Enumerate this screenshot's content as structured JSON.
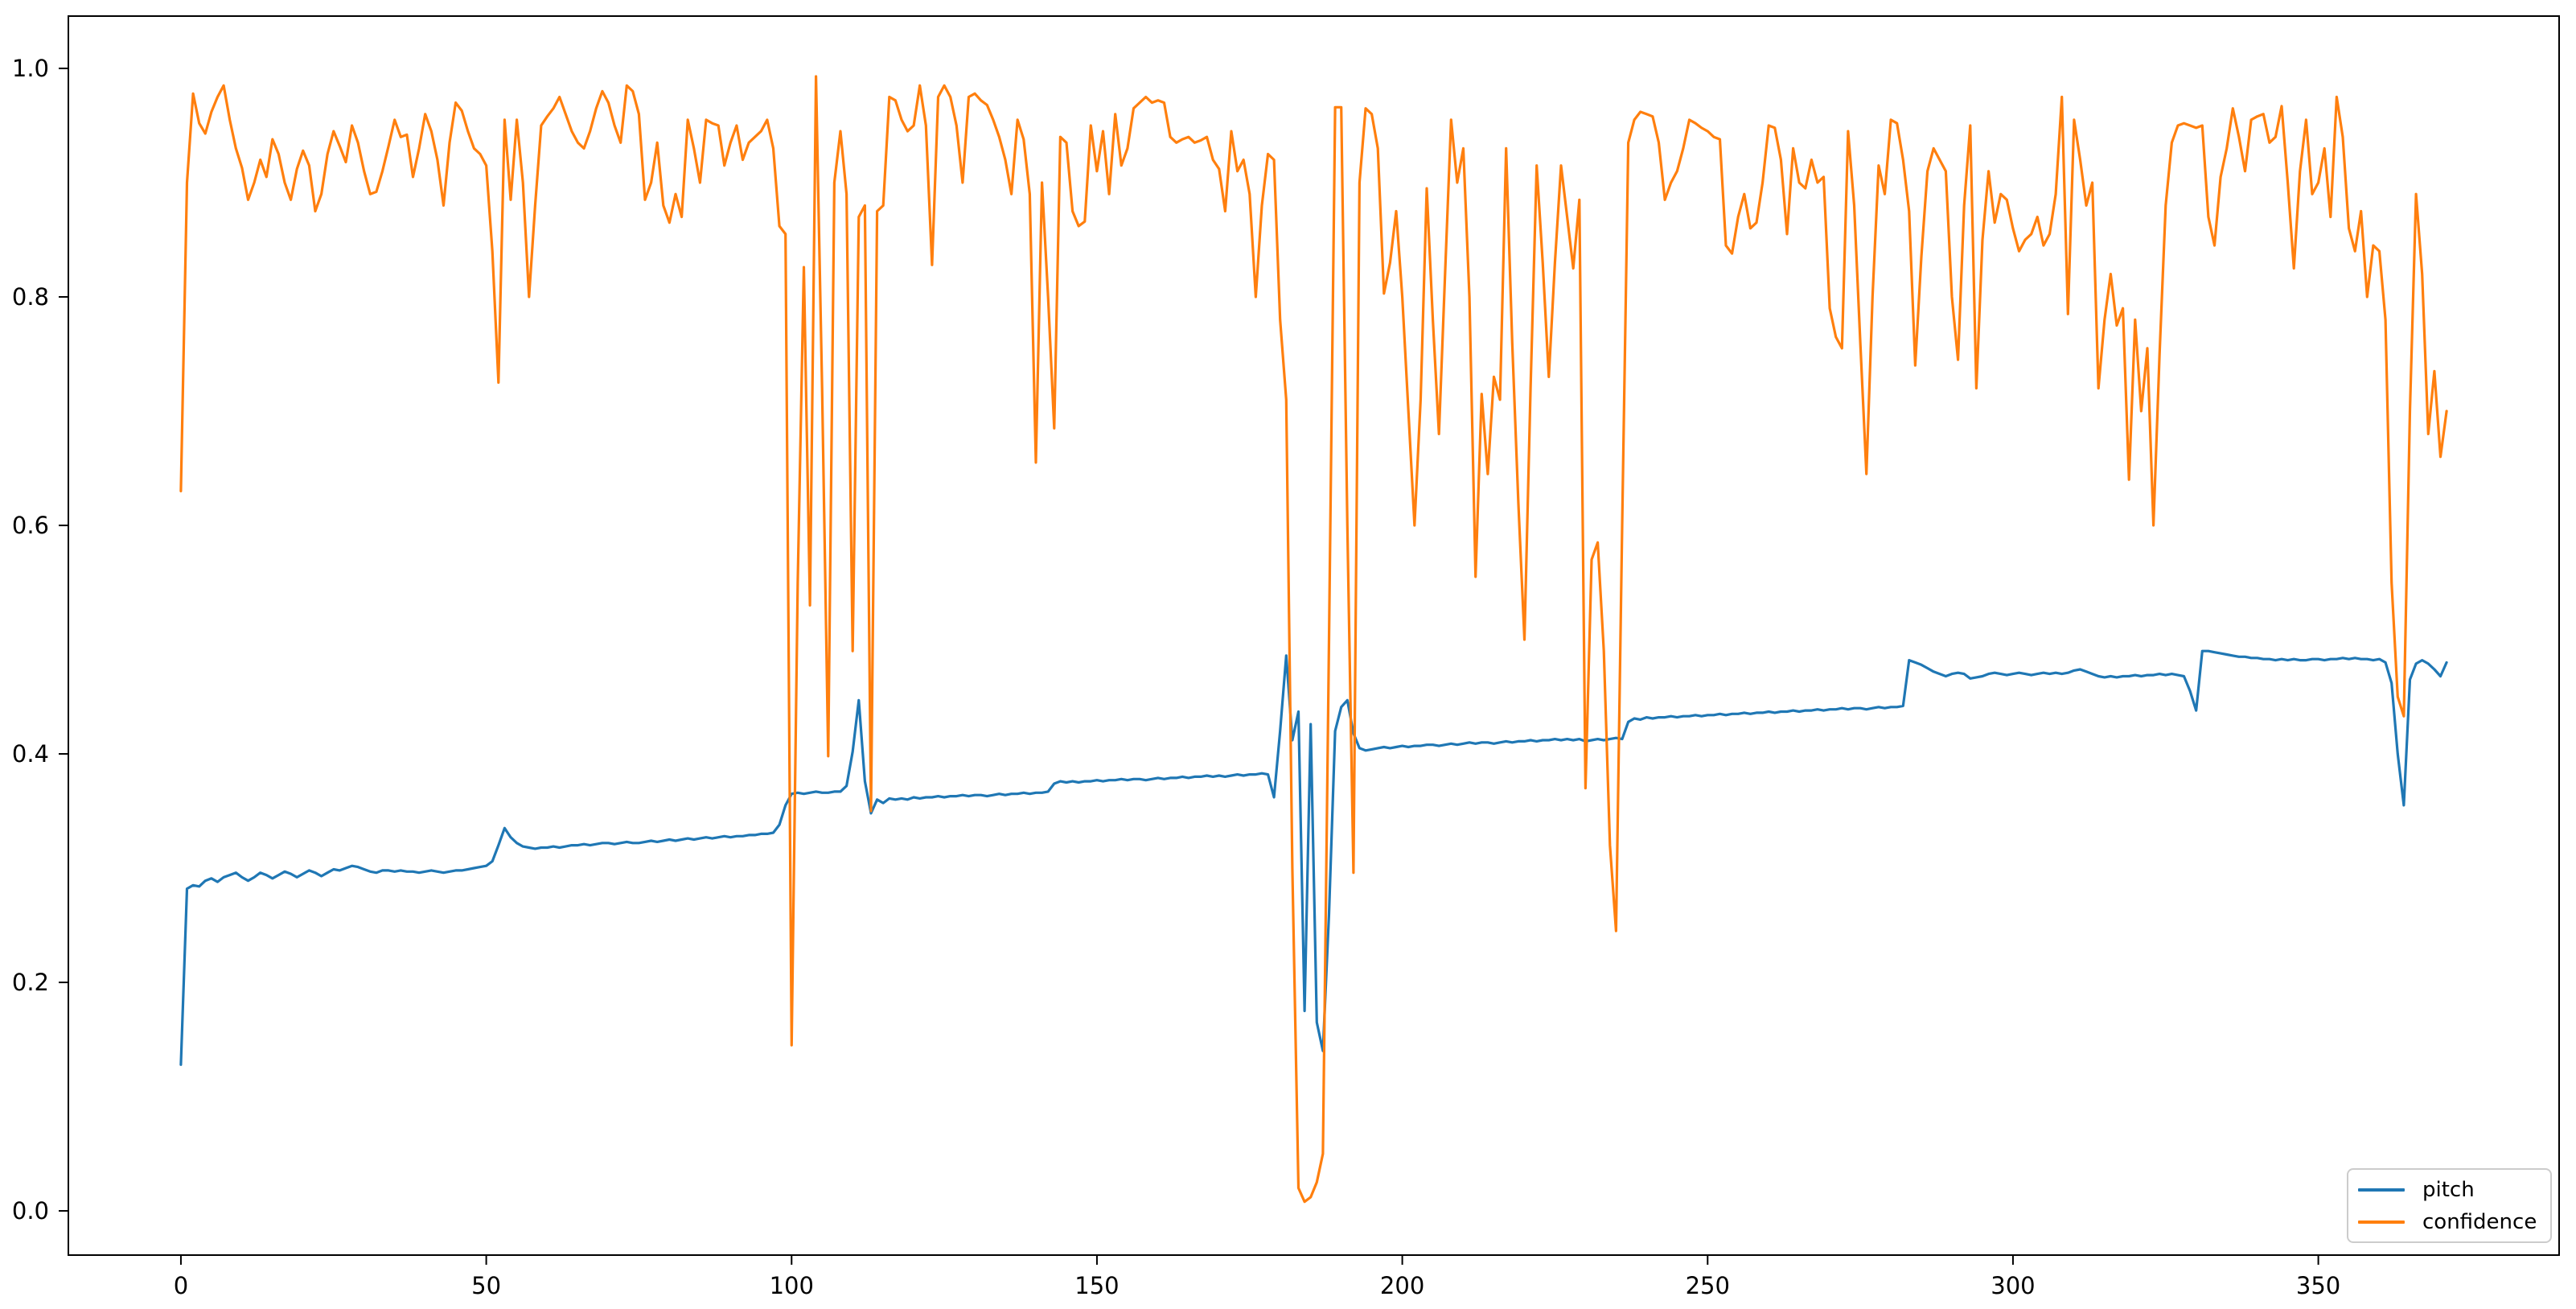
{
  "chart_data": {
    "type": "line",
    "title": "",
    "xlabel": "",
    "ylabel": "",
    "grid": false,
    "xlim": [
      -18.43,
      389.43
    ],
    "ylim": [
      -0.0387,
      1.0458
    ],
    "x_start": 0,
    "x_step": 1,
    "x_tick_values": [
      0,
      50,
      100,
      150,
      200,
      250,
      300,
      350
    ],
    "x_tick_labels": [
      "0",
      "50",
      "100",
      "150",
      "200",
      "250",
      "300",
      "350"
    ],
    "y_tick_values": [
      0.0,
      0.2,
      0.4,
      0.6,
      0.8,
      1.0
    ],
    "y_tick_labels": [
      "0.0",
      "0.2",
      "0.4",
      "0.6",
      "0.8",
      "1.0"
    ],
    "legend": {
      "position": "lower right",
      "entries": [
        "pitch",
        "confidence"
      ]
    },
    "series": [
      {
        "name": "pitch",
        "color": "#1f77b4",
        "values": [
          0.128,
          0.282,
          0.285,
          0.284,
          0.289,
          0.291,
          0.288,
          0.292,
          0.294,
          0.296,
          0.292,
          0.289,
          0.292,
          0.296,
          0.294,
          0.291,
          0.294,
          0.297,
          0.295,
          0.292,
          0.295,
          0.298,
          0.296,
          0.293,
          0.296,
          0.299,
          0.298,
          0.3,
          0.302,
          0.301,
          0.299,
          0.297,
          0.296,
          0.298,
          0.298,
          0.297,
          0.298,
          0.297,
          0.297,
          0.296,
          0.297,
          0.298,
          0.297,
          0.296,
          0.297,
          0.298,
          0.298,
          0.299,
          0.3,
          0.301,
          0.302,
          0.306,
          0.32,
          0.335,
          0.327,
          0.322,
          0.319,
          0.318,
          0.317,
          0.318,
          0.318,
          0.319,
          0.318,
          0.319,
          0.32,
          0.32,
          0.321,
          0.32,
          0.321,
          0.322,
          0.322,
          0.321,
          0.322,
          0.323,
          0.322,
          0.322,
          0.323,
          0.324,
          0.323,
          0.324,
          0.325,
          0.324,
          0.325,
          0.326,
          0.325,
          0.326,
          0.327,
          0.326,
          0.327,
          0.328,
          0.327,
          0.328,
          0.328,
          0.329,
          0.329,
          0.33,
          0.33,
          0.331,
          0.338,
          0.355,
          0.365,
          0.366,
          0.365,
          0.366,
          0.367,
          0.366,
          0.366,
          0.367,
          0.367,
          0.372,
          0.402,
          0.447,
          0.376,
          0.348,
          0.36,
          0.357,
          0.361,
          0.36,
          0.361,
          0.36,
          0.362,
          0.361,
          0.362,
          0.362,
          0.363,
          0.362,
          0.363,
          0.363,
          0.364,
          0.363,
          0.364,
          0.364,
          0.363,
          0.364,
          0.365,
          0.364,
          0.365,
          0.365,
          0.366,
          0.365,
          0.366,
          0.366,
          0.367,
          0.374,
          0.376,
          0.375,
          0.376,
          0.375,
          0.376,
          0.376,
          0.377,
          0.376,
          0.377,
          0.377,
          0.378,
          0.377,
          0.378,
          0.378,
          0.377,
          0.378,
          0.379,
          0.378,
          0.379,
          0.379,
          0.38,
          0.379,
          0.38,
          0.38,
          0.381,
          0.38,
          0.381,
          0.38,
          0.381,
          0.382,
          0.381,
          0.382,
          0.382,
          0.383,
          0.382,
          0.362,
          0.42,
          0.486,
          0.412,
          0.437,
          0.175,
          0.426,
          0.165,
          0.14,
          0.26,
          0.42,
          0.441,
          0.447,
          0.418,
          0.405,
          0.403,
          0.404,
          0.405,
          0.406,
          0.405,
          0.406,
          0.407,
          0.406,
          0.407,
          0.407,
          0.408,
          0.408,
          0.407,
          0.408,
          0.409,
          0.408,
          0.409,
          0.41,
          0.409,
          0.41,
          0.41,
          0.409,
          0.41,
          0.411,
          0.41,
          0.411,
          0.411,
          0.412,
          0.411,
          0.412,
          0.412,
          0.413,
          0.412,
          0.413,
          0.412,
          0.413,
          0.411,
          0.412,
          0.413,
          0.412,
          0.413,
          0.414,
          0.413,
          0.428,
          0.431,
          0.43,
          0.432,
          0.431,
          0.432,
          0.432,
          0.433,
          0.432,
          0.433,
          0.433,
          0.434,
          0.433,
          0.434,
          0.434,
          0.435,
          0.434,
          0.435,
          0.435,
          0.436,
          0.435,
          0.436,
          0.436,
          0.437,
          0.436,
          0.437,
          0.437,
          0.438,
          0.437,
          0.438,
          0.438,
          0.439,
          0.438,
          0.439,
          0.439,
          0.44,
          0.439,
          0.44,
          0.44,
          0.439,
          0.44,
          0.441,
          0.44,
          0.441,
          0.441,
          0.442,
          0.482,
          0.48,
          0.478,
          0.475,
          0.472,
          0.47,
          0.468,
          0.47,
          0.471,
          0.47,
          0.466,
          0.467,
          0.468,
          0.47,
          0.471,
          0.47,
          0.469,
          0.47,
          0.471,
          0.47,
          0.469,
          0.47,
          0.471,
          0.47,
          0.471,
          0.47,
          0.471,
          0.473,
          0.474,
          0.472,
          0.47,
          0.468,
          0.467,
          0.468,
          0.467,
          0.468,
          0.468,
          0.469,
          0.468,
          0.469,
          0.469,
          0.47,
          0.469,
          0.47,
          0.469,
          0.468,
          0.455,
          0.438,
          0.49,
          0.49,
          0.489,
          0.488,
          0.487,
          0.486,
          0.485,
          0.485,
          0.484,
          0.484,
          0.483,
          0.483,
          0.482,
          0.483,
          0.482,
          0.483,
          0.482,
          0.482,
          0.483,
          0.483,
          0.482,
          0.483,
          0.483,
          0.484,
          0.483,
          0.484,
          0.483,
          0.483,
          0.482,
          0.483,
          0.48,
          0.462,
          0.4,
          0.355,
          0.465,
          0.479,
          0.482,
          0.479,
          0.474,
          0.468,
          0.48
        ]
      },
      {
        "name": "confidence",
        "color": "#ff7f0e",
        "values": [
          0.63,
          0.9,
          0.978,
          0.952,
          0.943,
          0.962,
          0.975,
          0.985,
          0.955,
          0.93,
          0.913,
          0.885,
          0.9,
          0.92,
          0.905,
          0.938,
          0.925,
          0.9,
          0.885,
          0.912,
          0.928,
          0.915,
          0.875,
          0.89,
          0.925,
          0.945,
          0.932,
          0.918,
          0.95,
          0.935,
          0.91,
          0.89,
          0.892,
          0.91,
          0.932,
          0.955,
          0.94,
          0.942,
          0.905,
          0.93,
          0.96,
          0.945,
          0.92,
          0.88,
          0.935,
          0.97,
          0.963,
          0.945,
          0.93,
          0.925,
          0.915,
          0.84,
          0.725,
          0.955,
          0.885,
          0.955,
          0.9,
          0.8,
          0.88,
          0.95,
          0.958,
          0.965,
          0.975,
          0.96,
          0.945,
          0.935,
          0.93,
          0.945,
          0.965,
          0.98,
          0.97,
          0.95,
          0.935,
          0.985,
          0.98,
          0.96,
          0.885,
          0.9,
          0.935,
          0.88,
          0.865,
          0.89,
          0.87,
          0.955,
          0.93,
          0.9,
          0.955,
          0.952,
          0.95,
          0.915,
          0.935,
          0.95,
          0.92,
          0.935,
          0.94,
          0.945,
          0.955,
          0.93,
          0.862,
          0.855,
          0.145,
          0.55,
          0.826,
          0.53,
          0.993,
          0.72,
          0.398,
          0.9,
          0.945,
          0.89,
          0.49,
          0.87,
          0.88,
          0.35,
          0.875,
          0.88,
          0.975,
          0.972,
          0.955,
          0.945,
          0.95,
          0.985,
          0.95,
          0.828,
          0.975,
          0.985,
          0.975,
          0.95,
          0.9,
          0.975,
          0.978,
          0.972,
          0.968,
          0.955,
          0.94,
          0.92,
          0.89,
          0.955,
          0.938,
          0.89,
          0.655,
          0.9,
          0.8,
          0.685,
          0.94,
          0.935,
          0.875,
          0.862,
          0.866,
          0.95,
          0.91,
          0.945,
          0.89,
          0.96,
          0.915,
          0.93,
          0.965,
          0.97,
          0.975,
          0.97,
          0.972,
          0.97,
          0.94,
          0.935,
          0.938,
          0.94,
          0.935,
          0.937,
          0.94,
          0.92,
          0.912,
          0.875,
          0.945,
          0.91,
          0.92,
          0.89,
          0.8,
          0.88,
          0.925,
          0.92,
          0.78,
          0.71,
          0.3,
          0.02,
          0.008,
          0.012,
          0.025,
          0.05,
          0.5,
          0.966,
          0.966,
          0.6,
          0.296,
          0.9,
          0.965,
          0.96,
          0.93,
          0.803,
          0.83,
          0.875,
          0.8,
          0.7,
          0.6,
          0.71,
          0.895,
          0.78,
          0.68,
          0.82,
          0.955,
          0.9,
          0.93,
          0.8,
          0.555,
          0.715,
          0.645,
          0.73,
          0.71,
          0.93,
          0.76,
          0.62,
          0.5,
          0.72,
          0.915,
          0.83,
          0.73,
          0.83,
          0.915,
          0.87,
          0.825,
          0.885,
          0.37,
          0.57,
          0.585,
          0.49,
          0.32,
          0.245,
          0.6,
          0.935,
          0.955,
          0.962,
          0.96,
          0.958,
          0.935,
          0.885,
          0.9,
          0.91,
          0.93,
          0.955,
          0.952,
          0.948,
          0.945,
          0.94,
          0.938,
          0.845,
          0.838,
          0.87,
          0.89,
          0.86,
          0.865,
          0.9,
          0.95,
          0.948,
          0.92,
          0.855,
          0.93,
          0.9,
          0.895,
          0.92,
          0.9,
          0.905,
          0.79,
          0.765,
          0.755,
          0.945,
          0.88,
          0.76,
          0.645,
          0.8,
          0.915,
          0.89,
          0.955,
          0.952,
          0.92,
          0.875,
          0.74,
          0.835,
          0.91,
          0.93,
          0.92,
          0.91,
          0.8,
          0.745,
          0.88,
          0.95,
          0.72,
          0.85,
          0.91,
          0.865,
          0.89,
          0.885,
          0.86,
          0.84,
          0.85,
          0.855,
          0.87,
          0.845,
          0.855,
          0.89,
          0.975,
          0.785,
          0.955,
          0.92,
          0.88,
          0.9,
          0.72,
          0.78,
          0.82,
          0.775,
          0.79,
          0.64,
          0.78,
          0.7,
          0.755,
          0.6,
          0.75,
          0.88,
          0.935,
          0.95,
          0.952,
          0.95,
          0.948,
          0.95,
          0.87,
          0.845,
          0.905,
          0.93,
          0.965,
          0.94,
          0.91,
          0.955,
          0.958,
          0.96,
          0.935,
          0.94,
          0.967,
          0.9,
          0.825,
          0.91,
          0.955,
          0.89,
          0.9,
          0.93,
          0.87,
          0.975,
          0.94,
          0.86,
          0.84,
          0.875,
          0.8,
          0.845,
          0.84,
          0.78,
          0.55,
          0.45,
          0.433,
          0.7,
          0.89,
          0.82,
          0.68,
          0.735,
          0.66,
          0.7
        ]
      }
    ]
  }
}
